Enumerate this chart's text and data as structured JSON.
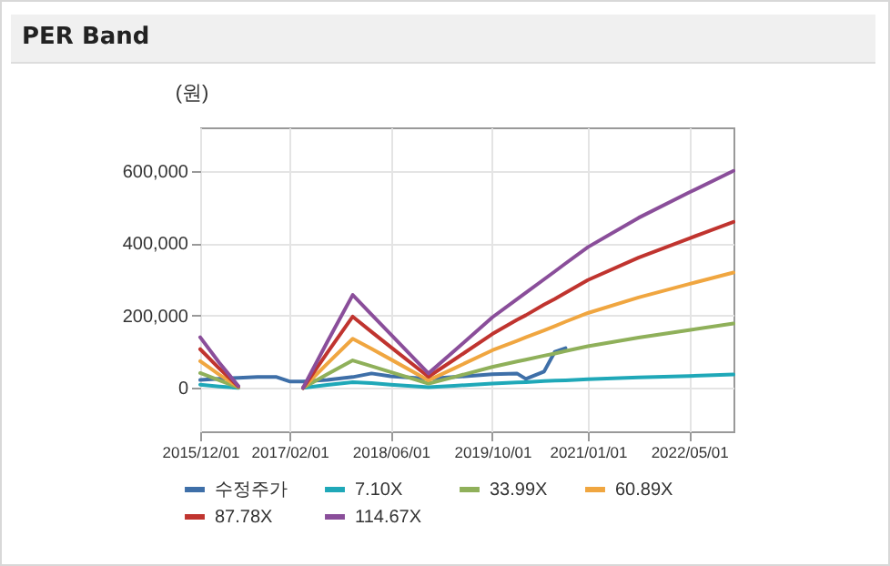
{
  "chart_data": {
    "type": "line",
    "title": "PER Band",
    "ylabel": "(원)",
    "x": [
      "2015-12-01",
      "2016-03-01",
      "2016-06-01",
      "2016-09-01",
      "2016-12-01",
      "2017-02-01",
      "2017-04-07",
      "2017-08-01",
      "2017-12-01",
      "2018-03-01",
      "2018-06-01",
      "2018-11-29",
      "2019-04-01",
      "2019-10-01",
      "2020-01-27",
      "2020-03-10",
      "2020-06-05",
      "2020-07-27",
      "2020-09-16",
      "2021-01-01",
      "2021-09-01",
      "2022-05-01",
      "2022-11-30"
    ],
    "series": [
      {
        "name": "수정주가",
        "color": "#3e6fa8",
        "values": [
          22000,
          25000,
          28000,
          30000,
          30000,
          18000,
          18000,
          22000,
          30000,
          40000,
          32000,
          25000,
          30000,
          38000,
          40000,
          25000,
          45000,
          100000,
          110000,
          null,
          null,
          null,
          null
        ]
      },
      {
        "name": "7.10X",
        "color": "#1fa8b8",
        "values": [
          9000,
          4000,
          0,
          null,
          null,
          null,
          0,
          8000,
          16000,
          13000,
          9000,
          2000,
          6000,
          12000,
          15000,
          16000,
          19000,
          20000,
          21000,
          24000,
          29000,
          33000,
          37000
        ]
      },
      {
        "name": "33.99X",
        "color": "#8fb05a",
        "values": [
          41000,
          21000,
          1000,
          null,
          null,
          null,
          0,
          38000,
          76000,
          60000,
          44000,
          12000,
          30000,
          58000,
          73000,
          78000,
          89000,
          95000,
          102000,
          115000,
          139000,
          160000,
          178000
        ]
      },
      {
        "name": "60.89X",
        "color": "#f0a640",
        "values": [
          74000,
          37000,
          3000,
          null,
          null,
          null,
          0,
          67000,
          136000,
          108000,
          79000,
          21000,
          54000,
          104000,
          130000,
          140000,
          159000,
          171000,
          183000,
          207000,
          250000,
          287000,
          319000
        ]
      },
      {
        "name": "87.78X",
        "color": "#c0342f",
        "values": [
          107000,
          54000,
          4000,
          null,
          null,
          null,
          0,
          97000,
          197000,
          155000,
          113000,
          31000,
          78000,
          149000,
          188000,
          201000,
          230000,
          246000,
          263000,
          298000,
          360000,
          413000,
          459000
        ]
      },
      {
        "name": "114.67X",
        "color": "#8a4e9a",
        "values": [
          140000,
          70000,
          5000,
          null,
          null,
          null,
          0,
          127000,
          257000,
          203000,
          148000,
          40000,
          102000,
          195000,
          245000,
          263000,
          300000,
          322000,
          344000,
          389000,
          470000,
          540000,
          600000
        ]
      }
    ],
    "xlim": [
      "2015-12-01",
      "2022-11-30"
    ],
    "xticks": [
      {
        "value": "2015-12-01",
        "label": "2015/12/01"
      },
      {
        "value": "2017-02-01",
        "label": "2017/02/01"
      },
      {
        "value": "2018-06-01",
        "label": "2018/06/01"
      },
      {
        "value": "2019-10-01",
        "label": "2019/10/01"
      },
      {
        "value": "2021-01-01",
        "label": "2021/01/01"
      },
      {
        "value": "2022-05-01",
        "label": "2022/05/01"
      }
    ],
    "ylim": [
      -120000,
      720000
    ],
    "yticks": [
      {
        "value": 0,
        "label": "0"
      },
      {
        "value": 200000,
        "label": "200,000"
      },
      {
        "value": 400000,
        "label": "400,000"
      },
      {
        "value": 600000,
        "label": "600,000"
      }
    ],
    "grid": true,
    "legend": "bottom",
    "marker": "none",
    "line_style": "solid"
  }
}
